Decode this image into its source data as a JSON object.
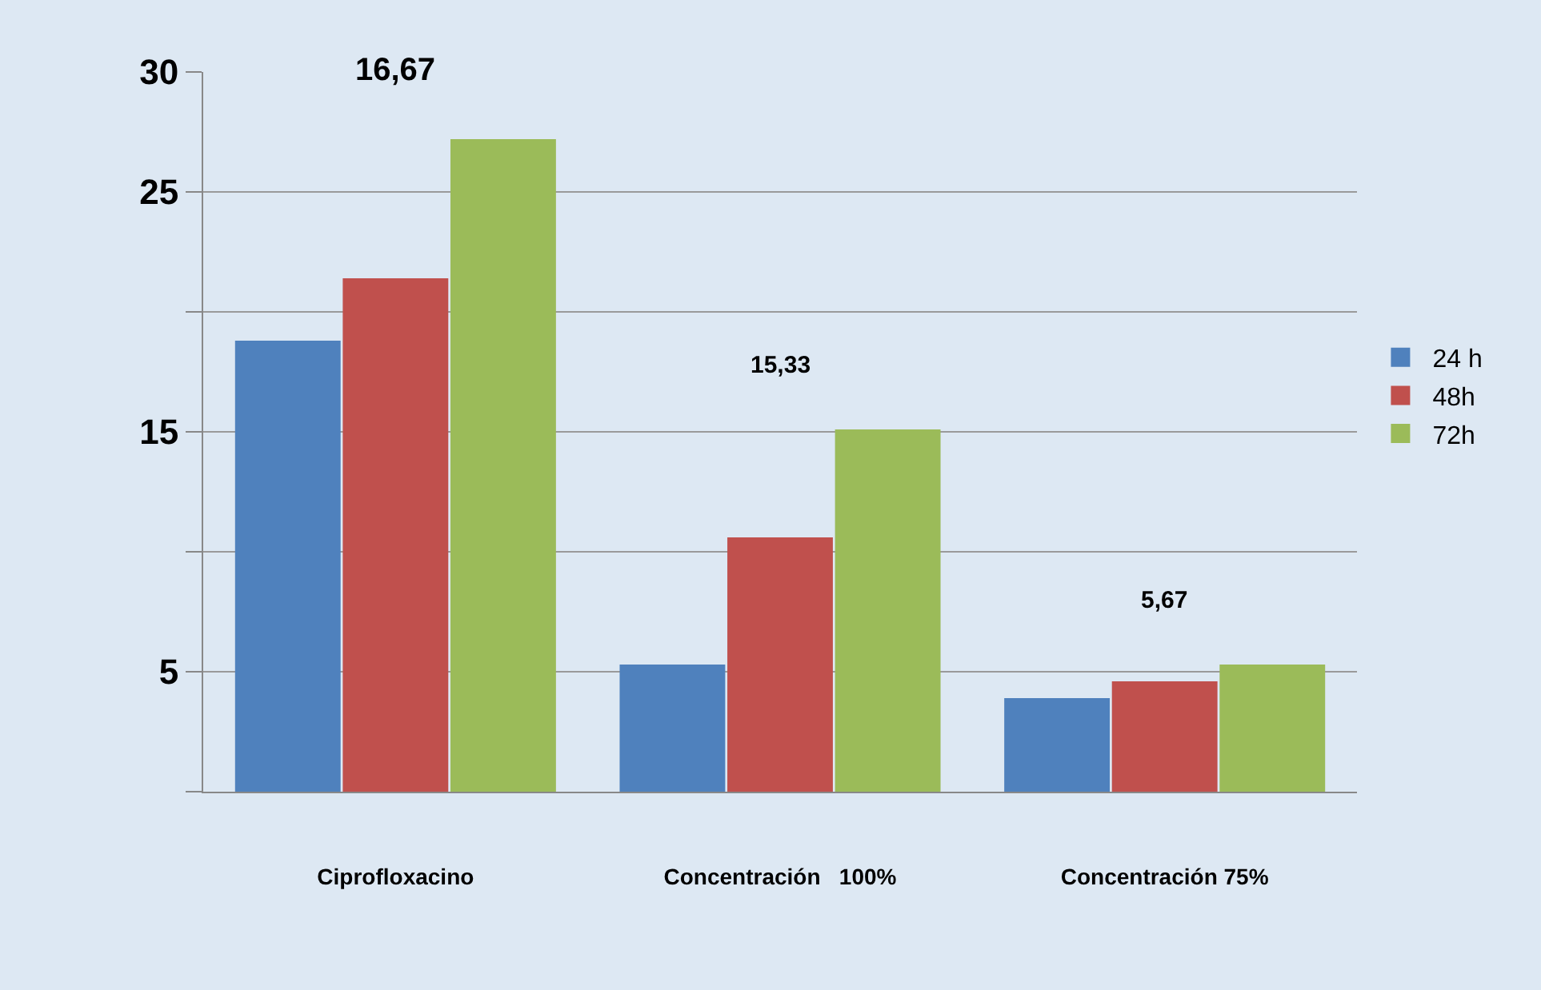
{
  "chart_data": {
    "type": "bar",
    "categories": [
      "Ciprofloxacino",
      "Concentración   100%",
      "Concentración 75%"
    ],
    "series": [
      {
        "name": "24 h",
        "color": "#4f81bd",
        "values": [
          18.8,
          5.3,
          3.9
        ]
      },
      {
        "name": "48h",
        "color": "#c0504d",
        "values": [
          21.4,
          10.6,
          4.6
        ]
      },
      {
        "name": "72h",
        "color": "#9bbb59",
        "values": [
          27.2,
          15.1,
          5.3
        ]
      }
    ],
    "ylim": [
      0,
      30
    ],
    "yticks": [
      {
        "value": 0,
        "label": null
      },
      5,
      {
        "value": 10,
        "label": null
      },
      15,
      {
        "value": 20,
        "label": null
      },
      25,
      30
    ],
    "annotations": [
      "16,67",
      "15,33",
      "5,67"
    ],
    "grid": "y",
    "legend": "right"
  }
}
